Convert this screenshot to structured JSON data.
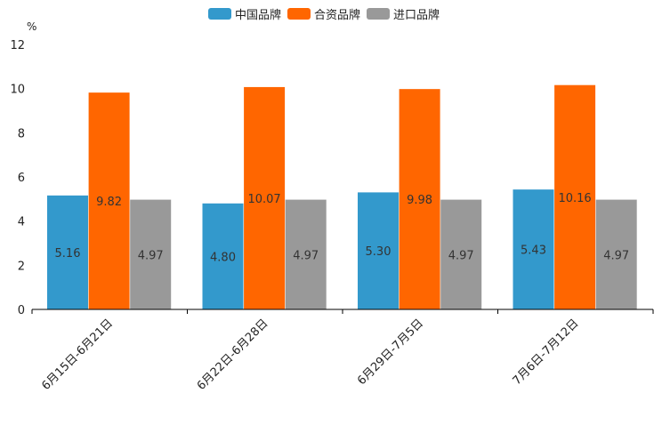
{
  "chart_data": {
    "type": "bar",
    "ylabel": "%",
    "ylim": [
      0,
      12
    ],
    "yticks": [
      "0",
      "2",
      "4",
      "6",
      "8",
      "10",
      "12"
    ],
    "categories": [
      "6月15日-6月21日",
      "6月22日-6月28日",
      "6月29日-7月5日",
      "7月6日-7月12日"
    ],
    "series": [
      {
        "name": "中国品牌",
        "color": "#3399cc",
        "values": [
          5.16,
          4.8,
          5.3,
          5.43
        ],
        "labels": [
          "5.16",
          "4.80",
          "5.30",
          "5.43"
        ]
      },
      {
        "name": "合资品牌",
        "color": "#ff6600",
        "values": [
          9.82,
          10.07,
          9.98,
          10.16
        ],
        "labels": [
          "9.82",
          "10.07",
          "9.98",
          "10.16"
        ]
      },
      {
        "name": "进口品牌",
        "color": "#999999",
        "values": [
          4.97,
          4.97,
          4.97,
          4.97
        ],
        "labels": [
          "4.97",
          "4.97",
          "4.97",
          "4.97"
        ]
      }
    ],
    "legend_position": "top-center"
  }
}
